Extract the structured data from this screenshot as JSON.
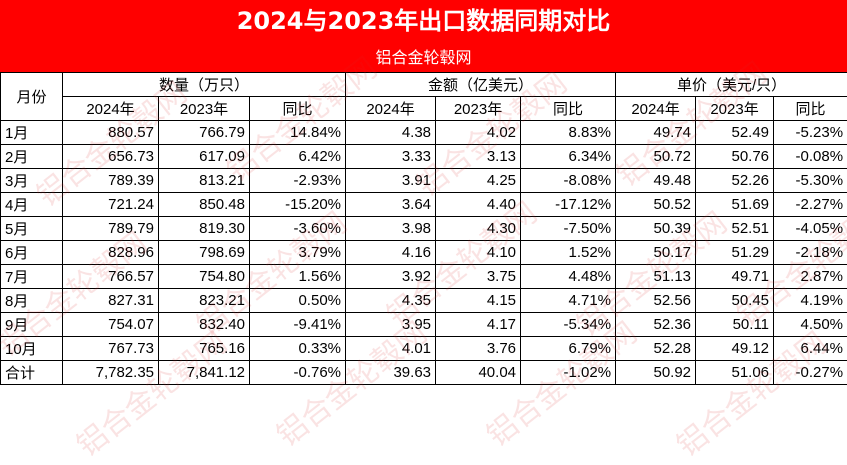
{
  "title": "2024与2023年出口数据同期对比",
  "subtitle": "铝合金轮毂网",
  "watermark": "铝合金轮毂网",
  "colors": {
    "header_red": "#ff0000",
    "header_text": "#ffffff",
    "watermark": "#dc2828"
  },
  "headers": {
    "month": "月份",
    "groups": [
      "数量（万只）",
      "金额（亿美元）",
      "单价（美元/只）"
    ],
    "sub": [
      "2024年",
      "2023年",
      "同比"
    ]
  },
  "rows": [
    {
      "month": "1月",
      "cells": [
        "880.57",
        "766.79",
        "14.84%",
        "4.38",
        "4.02",
        "8.83%",
        "49.74",
        "52.49",
        "-5.23%"
      ]
    },
    {
      "month": "2月",
      "cells": [
        "656.73",
        "617.09",
        "6.42%",
        "3.33",
        "3.13",
        "6.34%",
        "50.72",
        "50.76",
        "-0.08%"
      ]
    },
    {
      "month": "3月",
      "cells": [
        "789.39",
        "813.21",
        "-2.93%",
        "3.91",
        "4.25",
        "-8.08%",
        "49.48",
        "52.26",
        "-5.30%"
      ]
    },
    {
      "month": "4月",
      "cells": [
        "721.24",
        "850.48",
        "-15.20%",
        "3.64",
        "4.40",
        "-17.12%",
        "50.52",
        "51.69",
        "-2.27%"
      ]
    },
    {
      "month": "5月",
      "cells": [
        "789.79",
        "819.30",
        "-3.60%",
        "3.98",
        "4.30",
        "-7.50%",
        "50.39",
        "52.51",
        "-4.05%"
      ]
    },
    {
      "month": "6月",
      "cells": [
        "828.96",
        "798.69",
        "3.79%",
        "4.16",
        "4.10",
        "1.52%",
        "50.17",
        "51.29",
        "-2.18%"
      ]
    },
    {
      "month": "7月",
      "cells": [
        "766.57",
        "754.80",
        "1.56%",
        "3.92",
        "3.75",
        "4.48%",
        "51.13",
        "49.71",
        "2.87%"
      ]
    },
    {
      "month": "8月",
      "cells": [
        "827.31",
        "823.21",
        "0.50%",
        "4.35",
        "4.15",
        "4.71%",
        "52.56",
        "50.45",
        "4.19%"
      ]
    },
    {
      "month": "9月",
      "cells": [
        "754.07",
        "832.40",
        "-9.41%",
        "3.95",
        "4.17",
        "-5.34%",
        "52.36",
        "50.11",
        "4.50%"
      ]
    },
    {
      "month": "10月",
      "cells": [
        "767.73",
        "765.16",
        "0.33%",
        "4.01",
        "3.76",
        "6.79%",
        "52.28",
        "49.12",
        "6.44%"
      ]
    },
    {
      "month": "合计",
      "cells": [
        "7,782.35",
        "7,841.12",
        "-0.76%",
        "39.63",
        "40.04",
        "-1.02%",
        "50.92",
        "51.06",
        "-0.27%"
      ]
    }
  ]
}
